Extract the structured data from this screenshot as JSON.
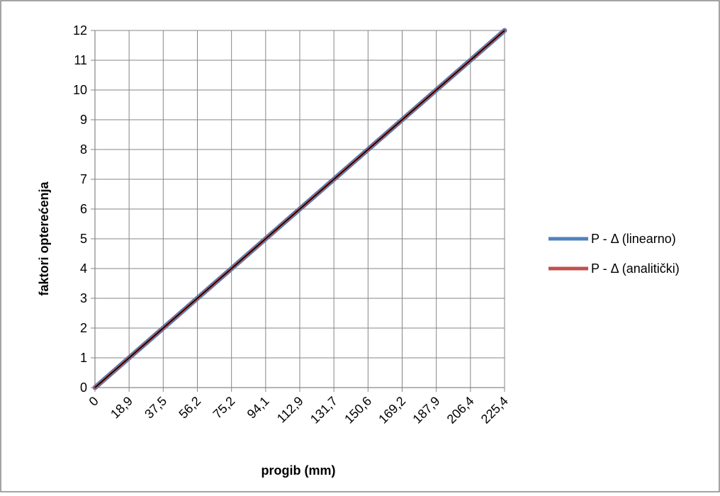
{
  "chart_data": {
    "type": "line",
    "title": "",
    "xlabel": "progib (mm)",
    "ylabel": "faktori opterećenja",
    "x_tick_labels": [
      "0",
      "18,9",
      "37,5",
      "56,2",
      "75,2",
      "94,1",
      "112,9",
      "131,7",
      "150,6",
      "169,2",
      "187,9",
      "206,4",
      "225,4"
    ],
    "y_tick_labels": [
      "0",
      "1",
      "2",
      "3",
      "4",
      "5",
      "6",
      "7",
      "8",
      "9",
      "10",
      "11",
      "12"
    ],
    "ylim": [
      0,
      12
    ],
    "grid": true,
    "legend_position": "right",
    "x": [
      0,
      18.9,
      37.5,
      56.2,
      75.2,
      94.1,
      112.9,
      131.7,
      150.6,
      169.2,
      187.9,
      206.4,
      225.4
    ],
    "series": [
      {
        "name": "P - Δ (linearno)",
        "color": "#4F81BD",
        "values": [
          0,
          1,
          2,
          3,
          4,
          5,
          6,
          7,
          8,
          9,
          10,
          11,
          12
        ]
      },
      {
        "name": "P - Δ (analitički)",
        "color": "#C0504D",
        "values": [
          0,
          1,
          2,
          3,
          4,
          5,
          6,
          7,
          8,
          9,
          10,
          11,
          12
        ]
      }
    ],
    "overlay_line_color": "#000000"
  }
}
